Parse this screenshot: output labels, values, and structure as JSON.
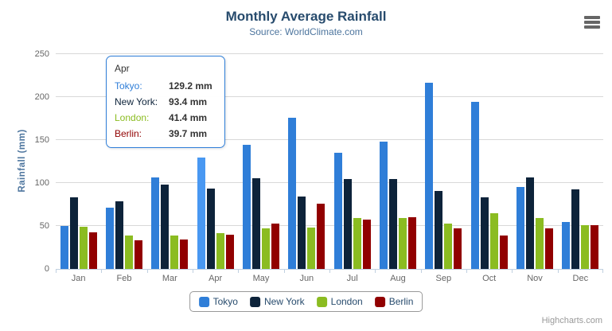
{
  "header": {
    "title": "Monthly Average Rainfall",
    "subtitle": "Source: WorldClimate.com"
  },
  "y_axis": {
    "title": "Rainfall (mm)",
    "ticks": [
      0,
      50,
      100,
      150,
      200,
      250
    ]
  },
  "x_axis": {
    "categories": [
      "Jan",
      "Feb",
      "Mar",
      "Apr",
      "May",
      "Jun",
      "Jul",
      "Aug",
      "Sep",
      "Oct",
      "Nov",
      "Dec"
    ]
  },
  "chart_data": {
    "type": "bar",
    "title": "Monthly Average Rainfall",
    "subtitle": "Source: WorldClimate.com",
    "xlabel": "",
    "ylabel": "Rainfall (mm)",
    "ylim": [
      0,
      259
    ],
    "y_ticks": [
      0,
      50,
      100,
      150,
      200,
      250
    ],
    "grid": true,
    "legend_position": "bottom",
    "categories": [
      "Jan",
      "Feb",
      "Mar",
      "Apr",
      "May",
      "Jun",
      "Jul",
      "Aug",
      "Sep",
      "Oct",
      "Nov",
      "Dec"
    ],
    "series": [
      {
        "name": "Tokyo",
        "color": "#2f7ed8",
        "values": [
          49.9,
          71.5,
          106.4,
          129.2,
          144.0,
          176.0,
          135.6,
          148.5,
          216.4,
          194.1,
          95.6,
          54.4
        ]
      },
      {
        "name": "New York",
        "color": "#0d233a",
        "values": [
          83.6,
          78.8,
          98.5,
          93.4,
          106.0,
          84.5,
          105.0,
          104.3,
          91.2,
          83.5,
          106.6,
          92.3
        ]
      },
      {
        "name": "London",
        "color": "#8bbc21",
        "values": [
          48.9,
          38.8,
          39.3,
          41.4,
          47.0,
          48.3,
          59.0,
          59.6,
          52.4,
          65.2,
          59.3,
          51.2
        ]
      },
      {
        "name": "Berlin",
        "color": "#910000",
        "values": [
          42.4,
          33.2,
          34.5,
          39.7,
          52.6,
          75.5,
          57.4,
          60.4,
          47.6,
          39.1,
          46.8,
          51.1
        ]
      }
    ],
    "hover": {
      "series": "Tokyo",
      "category": "Apr",
      "highlight_color": "#4998f2"
    }
  },
  "tooltip": {
    "header": "Apr",
    "border_color": "#2f7ed8",
    "rows": [
      {
        "label": "Tokyo:",
        "value": "129.2 mm",
        "color": "#2f7ed8"
      },
      {
        "label": "New York:",
        "value": "93.4 mm",
        "color": "#0d233a"
      },
      {
        "label": "London:",
        "value": "41.4 mm",
        "color": "#8bbc21"
      },
      {
        "label": "Berlin:",
        "value": "39.7 mm",
        "color": "#910000"
      }
    ]
  },
  "legend": {
    "items": [
      {
        "label": "Tokyo",
        "color": "#2f7ed8"
      },
      {
        "label": "New York",
        "color": "#0d233a"
      },
      {
        "label": "London",
        "color": "#8bbc21"
      },
      {
        "label": "Berlin",
        "color": "#910000"
      }
    ]
  },
  "credits": {
    "label": "Highcharts.com"
  }
}
